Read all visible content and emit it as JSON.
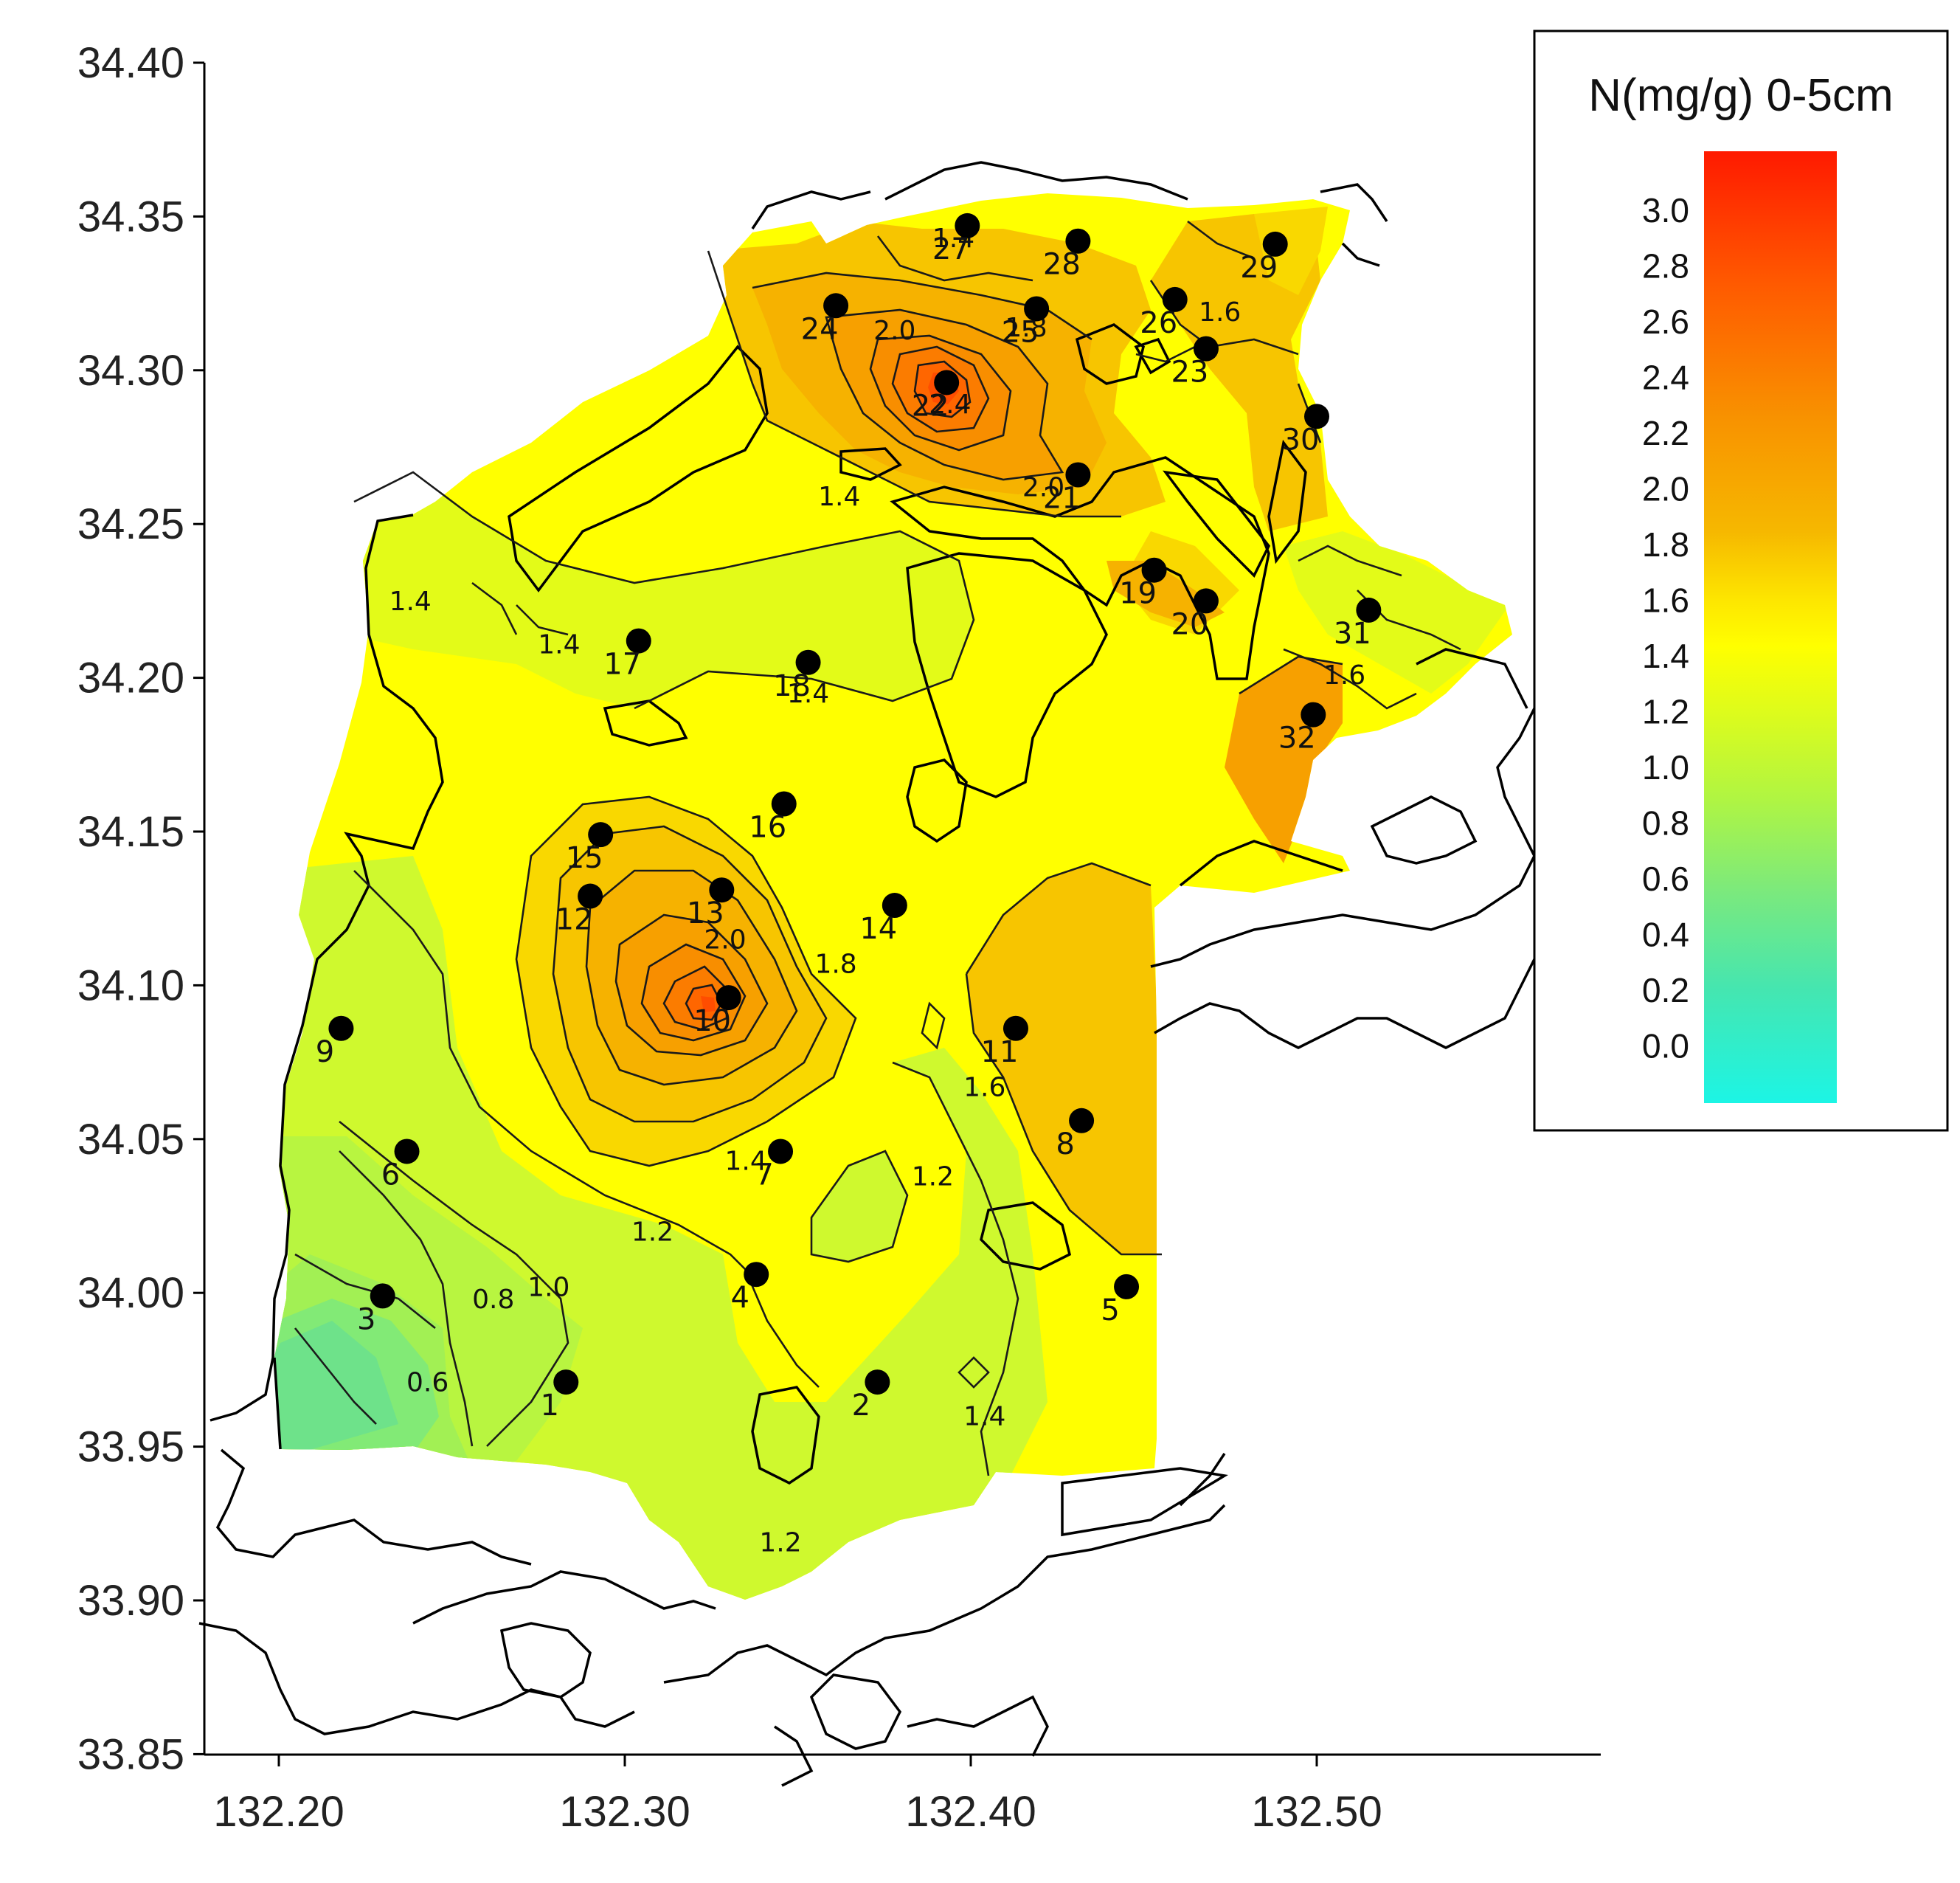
{
  "chart_data": {
    "type": "contour-map",
    "title": "",
    "legend": {
      "title": "N(mg/g) 0-5cm",
      "placement": "top-right",
      "ticks": [
        "3.0",
        "2.8",
        "2.6",
        "2.4",
        "2.2",
        "2.0",
        "1.8",
        "1.6",
        "1.4",
        "1.2",
        "1.0",
        "0.8",
        "0.6",
        "0.4",
        "0.2",
        "0.0"
      ],
      "range": [
        0.0,
        3.1
      ],
      "colors": [
        "#ff1a00",
        "#ff3300",
        "#ff4d00",
        "#ff6600",
        "#fb7c00",
        "#f88e00",
        "#f7a000",
        "#f6b200",
        "#f7c500",
        "#f9d800",
        "#fbeb00",
        "#ffff00",
        "#e5fb14",
        "#cefb2c",
        "#b6f840",
        "#9ef15a",
        "#86ec72",
        "#6ee68a",
        "#57e2a0",
        "#40ebb8",
        "#2af0d2",
        "#1cf5e5"
      ]
    },
    "x_axis": {
      "ticks": [
        "132.20",
        "132.30",
        "132.40",
        "132.50"
      ],
      "range": [
        132.18,
        132.58
      ]
    },
    "y_axis": {
      "ticks": [
        "34.40",
        "34.35",
        "34.30",
        "34.25",
        "34.20",
        "34.15",
        "34.10",
        "34.05",
        "34.00",
        "33.95",
        "33.90",
        "33.85"
      ],
      "range": [
        33.85,
        34.4
      ]
    },
    "stations": [
      {
        "id": "1",
        "lon": 132.283,
        "lat": 33.971
      },
      {
        "id": "2",
        "lon": 132.373,
        "lat": 33.971
      },
      {
        "id": "3",
        "lon": 132.23,
        "lat": 33.999
      },
      {
        "id": "4",
        "lon": 132.338,
        "lat": 34.006
      },
      {
        "id": "5",
        "lon": 132.445,
        "lat": 34.002
      },
      {
        "id": "6",
        "lon": 132.237,
        "lat": 34.046
      },
      {
        "id": "7",
        "lon": 132.345,
        "lat": 34.046
      },
      {
        "id": "8",
        "lon": 132.432,
        "lat": 34.056
      },
      {
        "id": "9",
        "lon": 132.218,
        "lat": 34.086
      },
      {
        "id": "10",
        "lon": 132.33,
        "lat": 34.096
      },
      {
        "id": "11",
        "lon": 132.413,
        "lat": 34.086
      },
      {
        "id": "12",
        "lon": 132.29,
        "lat": 34.129
      },
      {
        "id": "13",
        "lon": 132.328,
        "lat": 34.131
      },
      {
        "id": "14",
        "lon": 132.378,
        "lat": 34.126
      },
      {
        "id": "15",
        "lon": 132.293,
        "lat": 34.149
      },
      {
        "id": "16",
        "lon": 132.346,
        "lat": 34.159
      },
      {
        "id": "17",
        "lon": 132.304,
        "lat": 34.212
      },
      {
        "id": "18",
        "lon": 132.353,
        "lat": 34.205
      },
      {
        "id": "19",
        "lon": 132.453,
        "lat": 34.235
      },
      {
        "id": "20",
        "lon": 132.468,
        "lat": 34.225
      },
      {
        "id": "21",
        "lon": 132.431,
        "lat": 34.266
      },
      {
        "id": "22",
        "lon": 132.393,
        "lat": 34.296
      },
      {
        "id": "23",
        "lon": 132.468,
        "lat": 34.307
      },
      {
        "id": "24",
        "lon": 132.361,
        "lat": 34.321
      },
      {
        "id": "25",
        "lon": 132.419,
        "lat": 34.32
      },
      {
        "id": "26",
        "lon": 132.459,
        "lat": 34.323
      },
      {
        "id": "27",
        "lon": 132.399,
        "lat": 34.347
      },
      {
        "id": "28",
        "lon": 132.431,
        "lat": 34.342
      },
      {
        "id": "29",
        "lon": 132.488,
        "lat": 34.341
      },
      {
        "id": "30",
        "lon": 132.5,
        "lat": 34.285
      },
      {
        "id": "31",
        "lon": 132.515,
        "lat": 34.222
      },
      {
        "id": "32",
        "lon": 132.499,
        "lat": 34.188
      }
    ],
    "contour_labels": [
      {
        "text": "1.4",
        "lon": 132.395,
        "lat": 34.34
      },
      {
        "text": "2.0",
        "lon": 132.378,
        "lat": 34.31
      },
      {
        "text": "1.8",
        "lon": 132.416,
        "lat": 34.311
      },
      {
        "text": "1.6",
        "lon": 132.472,
        "lat": 34.316
      },
      {
        "text": "2.4",
        "lon": 132.394,
        "lat": 34.286
      },
      {
        "text": "2.0",
        "lon": 132.421,
        "lat": 34.259
      },
      {
        "text": "1.4",
        "lon": 132.362,
        "lat": 34.256
      },
      {
        "text": "1.4",
        "lon": 132.238,
        "lat": 34.222
      },
      {
        "text": "1.4",
        "lon": 132.281,
        "lat": 34.208
      },
      {
        "text": "1.4",
        "lon": 132.353,
        "lat": 34.192
      },
      {
        "text": "1.6",
        "lon": 132.508,
        "lat": 34.198
      },
      {
        "text": "2.0",
        "lon": 132.329,
        "lat": 34.112
      },
      {
        "text": "1.8",
        "lon": 132.361,
        "lat": 34.104
      },
      {
        "text": "1.6",
        "lon": 132.404,
        "lat": 34.064
      },
      {
        "text": "1.4",
        "lon": 132.335,
        "lat": 34.04
      },
      {
        "text": "1.2",
        "lon": 132.389,
        "lat": 34.035
      },
      {
        "text": "1.2",
        "lon": 132.308,
        "lat": 34.017
      },
      {
        "text": "1.0",
        "lon": 132.278,
        "lat": 33.999
      },
      {
        "text": "0.8",
        "lon": 132.262,
        "lat": 33.995
      },
      {
        "text": "0.6",
        "lon": 132.243,
        "lat": 33.968
      },
      {
        "text": "1.4",
        "lon": 132.404,
        "lat": 33.957
      },
      {
        "text": "1.2",
        "lon": 132.345,
        "lat": 33.916
      }
    ]
  }
}
